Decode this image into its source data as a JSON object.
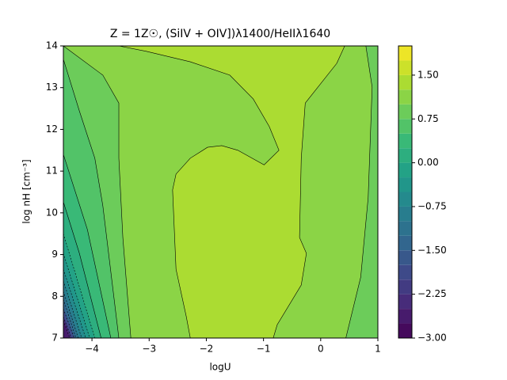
{
  "chart_data": {
    "type": "contourf",
    "title": "Z = 1Z☉, (SiIV + OIV])λ1400/HeIIλ1640",
    "xlabel": "logU",
    "ylabel": "log nH [cm⁻³]",
    "xlim": [
      -4.5,
      1
    ],
    "ylim": [
      7,
      14
    ],
    "xticks": [
      {
        "value": -4,
        "label": "−4"
      },
      {
        "value": -3,
        "label": "−3"
      },
      {
        "value": -2,
        "label": "−2"
      },
      {
        "value": -1,
        "label": "−1"
      },
      0,
      1
    ],
    "yticks": [
      7,
      8,
      9,
      10,
      11,
      12,
      13,
      14
    ],
    "colormap": "viridis",
    "clim": [
      -3,
      2
    ],
    "levels": [
      -3,
      -2.75,
      -2.5,
      -2.25,
      -2,
      -1.75,
      -1.5,
      -1.25,
      -1,
      -0.75,
      -0.5,
      -0.25,
      0,
      0.25,
      0.5,
      0.75,
      1,
      1.25,
      1.5,
      1.75,
      2
    ],
    "cticks": [
      {
        "value": -3,
        "label": "−3.00"
      },
      {
        "value": -2.25,
        "label": "−2.25"
      },
      {
        "value": -1.5,
        "label": "−1.50"
      },
      {
        "value": -0.75,
        "label": "−0.75"
      },
      {
        "value": 0,
        "label": "0.00"
      },
      {
        "value": 0.75,
        "label": "0.75"
      },
      {
        "value": 1.5,
        "label": "1.50"
      }
    ],
    "regions": [
      {
        "level": 1,
        "x": [
          -4.5,
          1,
          1,
          -4.5
        ],
        "y": [
          7,
          7,
          14,
          14
        ]
      },
      {
        "level": 0.75,
        "x": [
          -4.5,
          -3.81,
          -3.53,
          -3.53,
          -3.46,
          -3.32,
          -4.5
        ],
        "y": [
          14,
          13.3,
          12.63,
          11.31,
          9.41,
          7,
          7
        ]
      },
      {
        "level": 0.5,
        "x": [
          -4.5,
          -4.22,
          -3.95,
          -3.81,
          -3.53,
          -4.5
        ],
        "y": [
          13.68,
          12.44,
          11.31,
          10.17,
          7,
          7
        ]
      },
      {
        "level": 0.25,
        "x": [
          -4.5,
          -4.08,
          -3.67,
          -4.5
        ],
        "y": [
          11.4,
          9.6,
          7,
          7
        ]
      },
      {
        "level": 0,
        "x": [
          -4.5,
          -4.22,
          -3.84,
          -4.5
        ],
        "y": [
          10.26,
          9.03,
          7,
          7
        ]
      },
      {
        "level": -0.25,
        "x": [
          -4.5,
          -3.95,
          -4.5
        ],
        "y": [
          9.5,
          7,
          7
        ]
      },
      {
        "level": -0.5,
        "x": [
          -4.5,
          -4.04,
          -4.5
        ],
        "y": [
          9.03,
          7,
          7
        ]
      },
      {
        "level": -0.75,
        "x": [
          -4.5,
          -4.11,
          -4.5
        ],
        "y": [
          8.65,
          7,
          7
        ]
      },
      {
        "level": -1,
        "x": [
          -4.5,
          -4.18,
          -4.5
        ],
        "y": [
          8.37,
          7,
          7
        ]
      },
      {
        "level": -1.25,
        "x": [
          -4.5,
          -4.24,
          -4.5
        ],
        "y": [
          8.12,
          7,
          7
        ]
      },
      {
        "level": -1.5,
        "x": [
          -4.5,
          -4.28,
          -4.5
        ],
        "y": [
          7.93,
          7,
          7
        ]
      },
      {
        "level": -2,
        "x": [
          -4.5,
          -4.31,
          -4.5
        ],
        "y": [
          7.7,
          7,
          7
        ]
      },
      {
        "level": -2.5,
        "x": [
          -4.5,
          -4.36,
          -4.5
        ],
        "y": [
          7.51,
          7,
          7
        ]
      },
      {
        "level": -2.75,
        "x": [
          -4.5,
          -4.39,
          -4.5
        ],
        "y": [
          7.42,
          7,
          7
        ]
      },
      {
        "level": 0.75,
        "x": [
          0.79,
          0.9,
          0.83,
          0.7,
          0.44,
          1,
          1
        ],
        "y": [
          14,
          13.01,
          10.36,
          8.46,
          7,
          7,
          14
        ]
      },
      {
        "level": 1.25,
        "x": [
          -2.28,
          -2.35,
          -2.53,
          -2.59,
          -2.53,
          -2.28,
          -1.98,
          -1.73,
          -1.45,
          -0.99,
          -0.73,
          -0.9,
          -1.18,
          -1.59,
          -2.28,
          -3.05,
          -3.53,
          0.42,
          0.28,
          -0.27,
          -0.34,
          -0.37,
          -0.25,
          -0.34,
          -0.76,
          -0.83
        ],
        "y": [
          7,
          7.51,
          8.65,
          10.55,
          10.93,
          11.31,
          11.57,
          11.61,
          11.5,
          11.15,
          11.5,
          12.07,
          12.73,
          13.3,
          13.62,
          13.87,
          14,
          14,
          13.58,
          12.63,
          11.31,
          9.41,
          9.03,
          8.27,
          7.32,
          7
        ]
      }
    ]
  }
}
